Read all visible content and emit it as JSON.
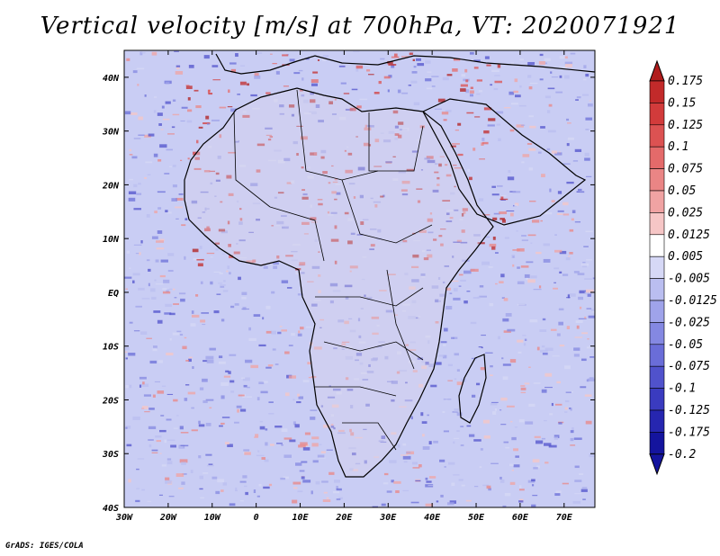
{
  "title": "Vertical velocity [m/s] at 700hPa, VT: 2020071921",
  "credit": "GrADS: IGES/COLA",
  "map": {
    "lon_range": [
      -30,
      77
    ],
    "lat_range": [
      -40,
      45
    ],
    "x_ticks": [
      "30W",
      "20W",
      "10W",
      "0",
      "10E",
      "20E",
      "30E",
      "40E",
      "50E",
      "60E",
      "70E"
    ],
    "x_tick_values": [
      -30,
      -20,
      -10,
      0,
      10,
      20,
      30,
      40,
      50,
      60,
      70
    ],
    "y_ticks": [
      "40N",
      "30N",
      "20N",
      "10N",
      "EQ",
      "10S",
      "20S",
      "30S",
      "40S"
    ],
    "y_tick_values": [
      40,
      30,
      20,
      10,
      0,
      -10,
      -20,
      -30,
      -40
    ],
    "ocean_color": "#c9cdf4",
    "coastline_color": "#000000"
  },
  "colorbar": {
    "labels": [
      "0.175",
      "0.15",
      "0.125",
      "0.1",
      "0.075",
      "0.05",
      "0.025",
      "0.0125",
      "0.005",
      "-0.005",
      "-0.0125",
      "-0.025",
      "-0.05",
      "-0.075",
      "-0.1",
      "-0.125",
      "-0.175",
      "-0.2"
    ],
    "colors": [
      "#b01c1c",
      "#c22a2a",
      "#d23b3b",
      "#dc5252",
      "#e46a6a",
      "#ea8585",
      "#f0a3a3",
      "#f6c6c6",
      "#ffffff",
      "#d6d8f6",
      "#babef0",
      "#9fa3ea",
      "#8488e2",
      "#6a6dd8",
      "#5052cc",
      "#3a3bbf",
      "#2626b0",
      "#14149e"
    ]
  }
}
